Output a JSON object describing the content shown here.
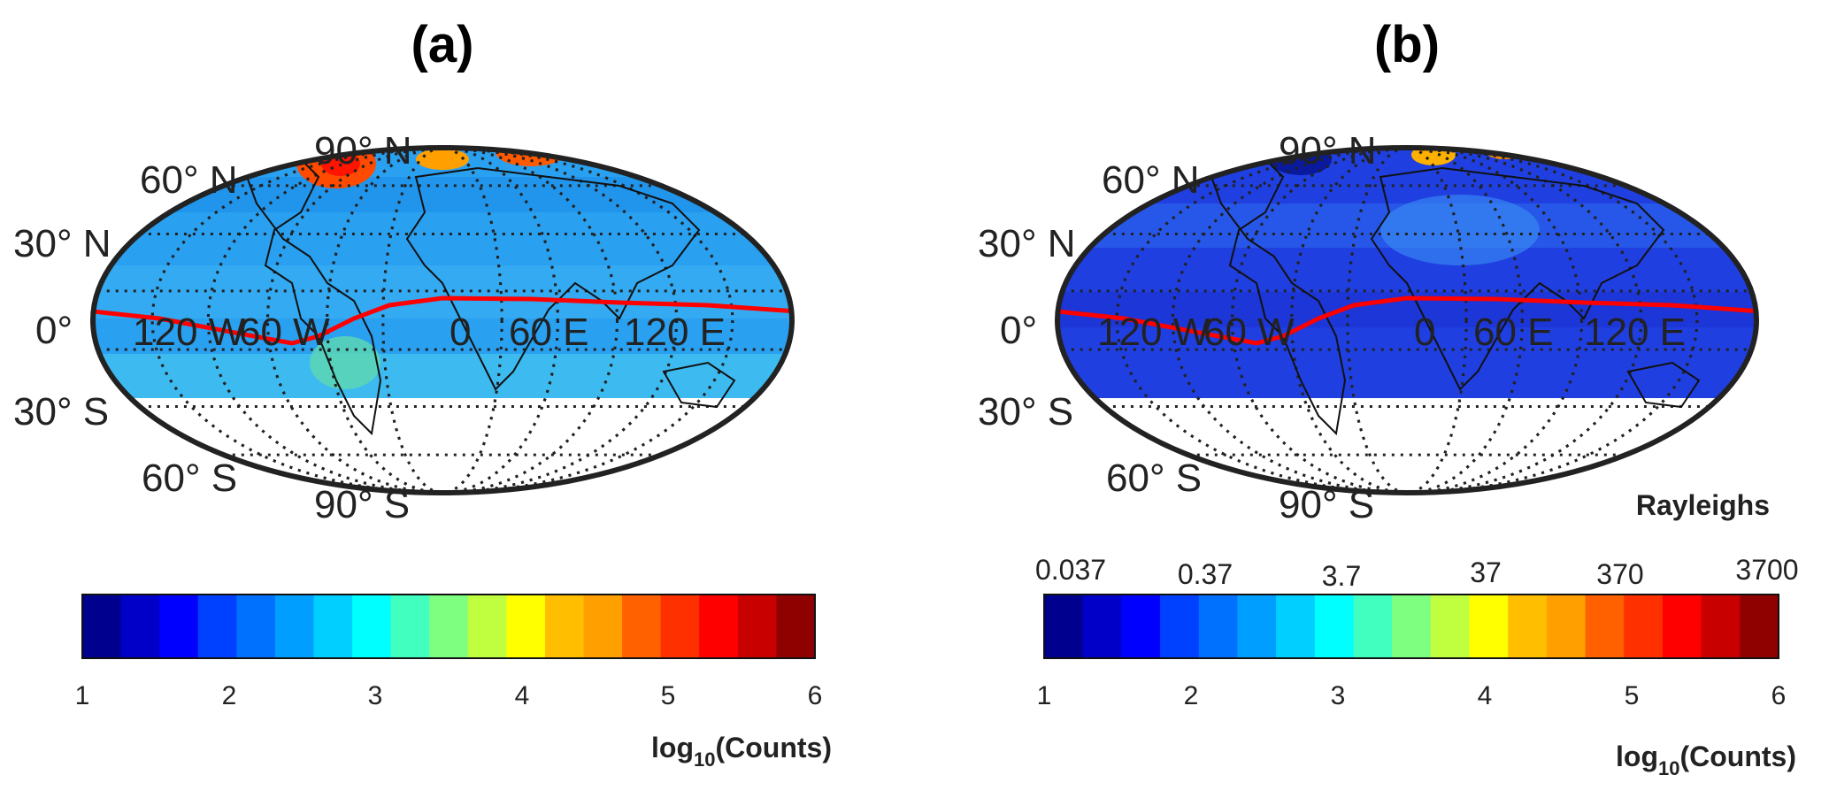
{
  "panels": [
    {
      "id": "a",
      "label": "(a)",
      "map_labels": {
        "lat": [
          "60° N",
          "30° N",
          "0°",
          "30° S",
          "60° S",
          "90° S",
          "90° N"
        ],
        "lon": [
          "120 W",
          "60 W",
          "0",
          "60 E",
          "120 E"
        ]
      },
      "colorbar": {
        "ticks": [
          "1",
          "2",
          "3",
          "4",
          "5",
          "6"
        ],
        "label_main": "log",
        "label_sub": "10",
        "label_rest": "(Counts)",
        "top_ticks": [],
        "top_title": ""
      }
    },
    {
      "id": "b",
      "label": "(b)",
      "map_labels": {
        "lat": [
          "60° N",
          "30° N",
          "0°",
          "30° S",
          "60° S",
          "90° S",
          "90° N"
        ],
        "lon": [
          "120 W",
          "60 W",
          "0",
          "60 E",
          "120 E"
        ]
      },
      "colorbar": {
        "ticks": [
          "1",
          "2",
          "3",
          "4",
          "5",
          "6"
        ],
        "label_main": "log",
        "label_sub": "10",
        "label_rest": "(Counts)",
        "top_ticks": [
          "0.037",
          "0.37",
          "3.7",
          "37",
          "370",
          "3700"
        ],
        "top_title": "Rayleighs"
      }
    }
  ],
  "colors": {
    "colormap": [
      "#00008f",
      "#0000c8",
      "#0000ff",
      "#0040ff",
      "#0070ff",
      "#009fff",
      "#00cfff",
      "#00ffff",
      "#40ffbf",
      "#7fff80",
      "#bfff40",
      "#ffff00",
      "#ffbf00",
      "#ff9f00",
      "#ff6000",
      "#ff3000",
      "#ff0000",
      "#c80000",
      "#8f0000"
    ],
    "equator_line": "#ff0000",
    "map_fill_a": "#2aa0f0",
    "map_fill_b": "#1f3fe0"
  },
  "chart_data": [
    {
      "type": "heatmap",
      "title": "(a)",
      "projection": "Hammer-Aitoff world map",
      "colorbar_range": [
        1,
        6
      ],
      "colorbar_label": "log10(Counts)",
      "overlay": "magnetic dip equator (red line)"
    },
    {
      "type": "heatmap",
      "title": "(b)",
      "projection": "Hammer-Aitoff world map",
      "colorbar_range": [
        1,
        6
      ],
      "colorbar_label": "log10(Counts)",
      "secondary_axis": {
        "label": "Rayleighs",
        "ticks": [
          0.037,
          0.37,
          3.7,
          37,
          370,
          3700
        ]
      },
      "overlay": "magnetic dip equator (red line)"
    }
  ]
}
